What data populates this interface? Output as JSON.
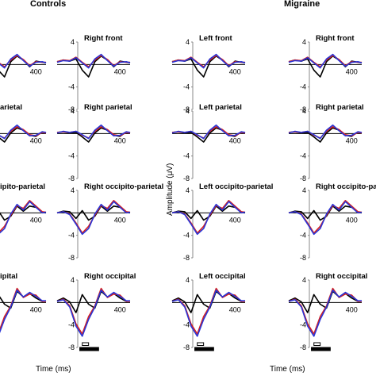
{
  "chart_data": {
    "type": "line",
    "title": "",
    "group_labels": [
      "Controls",
      "Migraine"
    ],
    "ylabel": "Amplitude (μV)",
    "xlabel": "Time (ms)",
    "xlim": [
      -100,
      480
    ],
    "ylim": [
      -8,
      4
    ],
    "yticks": [
      4,
      -4,
      -8
    ],
    "xtick_label": "400",
    "series_colors": {
      "black": "#000000",
      "red": "#d62020",
      "blue": "#2a35d6"
    },
    "grid": false,
    "row_titles": [
      [
        "",
        "Right front",
        "Left front",
        "Right front"
      ],
      [
        "",
        "Right parietal",
        "Left parietal",
        "Right parietal"
      ],
      [
        "",
        "Right occipito-parietal",
        "Left occipito-parietal",
        "Right occipito-parietal"
      ],
      [
        "",
        "Right occipital",
        "Left occipital",
        "Right occipital"
      ]
    ],
    "visible_title_fragments": [
      "",
      "arietal",
      "ipito-parietal",
      "ipital"
    ],
    "time_points": [
      -100,
      -50,
      0,
      50,
      100,
      150,
      200,
      250,
      300,
      350,
      400,
      450,
      480
    ],
    "rows": [
      {
        "black": [
          0.5,
          0.8,
          0.6,
          1.0,
          -1.0,
          -2.2,
          0.5,
          1.5,
          0.8,
          -0.4,
          0.6,
          0.4,
          0.3
        ],
        "red": [
          0.5,
          0.8,
          0.7,
          1.3,
          0.4,
          -0.4,
          0.8,
          1.6,
          0.9,
          -0.2,
          0.5,
          0.4,
          0.4
        ],
        "blue": [
          0.4,
          0.7,
          0.6,
          1.2,
          0.3,
          -0.6,
          1.0,
          1.8,
          0.7,
          -0.3,
          0.4,
          0.5,
          0.3
        ]
      },
      {
        "black": [
          0.2,
          0.3,
          0.1,
          0.2,
          -0.6,
          -1.5,
          0.1,
          1.0,
          0.6,
          -0.3,
          -0.5,
          0.3,
          0.1
        ],
        "red": [
          0.2,
          0.3,
          0.2,
          0.4,
          -0.3,
          -0.8,
          0.4,
          1.2,
          0.7,
          -0.2,
          -0.4,
          0.2,
          0.1
        ],
        "blue": [
          0.1,
          0.4,
          0.2,
          0.4,
          -0.2,
          -0.9,
          0.6,
          1.5,
          0.5,
          -0.4,
          -0.3,
          0.3,
          0.2
        ]
      },
      {
        "black": [
          0.0,
          0.3,
          0.2,
          -1.0,
          0.4,
          -1.3,
          -0.6,
          1.2,
          0.3,
          1.2,
          1.0,
          0.1,
          0.0
        ],
        "red": [
          0.0,
          0.2,
          -0.2,
          -1.8,
          -3.6,
          -2.4,
          -0.4,
          1.3,
          0.8,
          2.2,
          1.2,
          0.2,
          0.1
        ],
        "blue": [
          0.0,
          0.2,
          -0.3,
          -2.0,
          -3.8,
          -2.8,
          -0.2,
          1.5,
          0.5,
          2.0,
          1.0,
          0.0,
          0.1
        ]
      },
      {
        "black": [
          0.3,
          0.8,
          0.1,
          -1.8,
          1.4,
          -0.3,
          -1.0,
          2.0,
          1.0,
          1.6,
          0.8,
          0.2,
          0.3
        ],
        "red": [
          0.2,
          0.6,
          -0.6,
          -3.8,
          -5.6,
          -2.5,
          -0.6,
          2.5,
          0.9,
          1.5,
          1.3,
          0.2,
          0.2
        ],
        "blue": [
          0.2,
          0.5,
          -0.8,
          -4.2,
          -6.0,
          -3.0,
          -0.8,
          2.2,
          1.0,
          1.8,
          1.1,
          0.3,
          0.3
        ]
      }
    ],
    "significance_bars": [
      {
        "row": 3,
        "col": 1,
        "from_ms": 100,
        "to_ms": 150,
        "filled": false
      },
      {
        "row": 3,
        "col": 1,
        "from_ms": 80,
        "to_ms": 230,
        "filled": true
      },
      {
        "row": 3,
        "col": 2,
        "from_ms": 100,
        "to_ms": 150,
        "filled": false
      },
      {
        "row": 3,
        "col": 2,
        "from_ms": 80,
        "to_ms": 230,
        "filled": true
      },
      {
        "row": 3,
        "col": 3,
        "from_ms": 100,
        "to_ms": 150,
        "filled": false
      },
      {
        "row": 3,
        "col": 3,
        "from_ms": 80,
        "to_ms": 230,
        "filled": true
      }
    ]
  }
}
